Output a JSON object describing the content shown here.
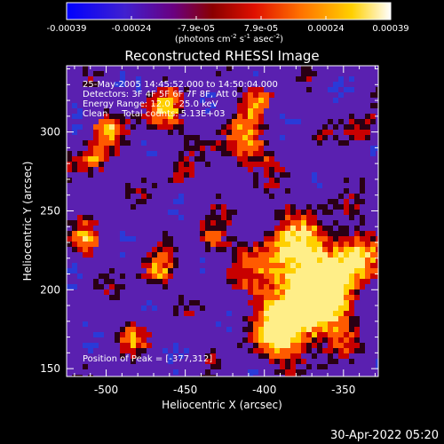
{
  "colorbar": {
    "ticks": [
      "-0.00039",
      "-0.00024",
      "-7.9e-05",
      "7.9e-05",
      "0.00024",
      "0.00039"
    ],
    "units_parts": [
      "(photons cm",
      "-2",
      " s",
      "-1",
      " asec",
      "-2",
      ")"
    ],
    "colormap": [
      "#0000ff",
      "#5020c0",
      "#700060",
      "#a00000",
      "#ff2000",
      "#ff8000",
      "#ffd000",
      "#ffffff"
    ]
  },
  "plot": {
    "title": "Reconstructed RHESSI Image",
    "info_lines": [
      "25-May-2005 14:45:52.000 to 14:50:04.000",
      "Detectors: 3F 4F 5F 6F 7F 8F, Att 0",
      "Energy Range: 12.0 - 25.0 keV",
      "Clean     Total counts: 5.13E+03"
    ],
    "peak_text": "Position of Peak = [-377,312]",
    "x_axis": {
      "label": "Heliocentric X (arcsec)",
      "range": [
        -525,
        -328
      ],
      "major_ticks": [
        -500,
        -450,
        -400,
        -350
      ],
      "tick_labels": [
        "-500",
        "-450",
        "-400",
        "-350"
      ]
    },
    "y_axis": {
      "label": "Heliocentric Y (arcsec)",
      "range": [
        145,
        342
      ],
      "major_ticks": [
        150,
        200,
        250,
        300
      ],
      "tick_labels": [
        "150",
        "200",
        "250",
        "300"
      ]
    },
    "image_colors": {
      "background": "#5a20b0",
      "blue_patch": "#2a3ad8",
      "dark_outline": "#2a0014",
      "red": "#c80000",
      "orange": "#ff5a00",
      "yellow": "#ffd000",
      "pale": "#ffee88"
    }
  },
  "timestamp": "30-Apr-2022 05:20"
}
